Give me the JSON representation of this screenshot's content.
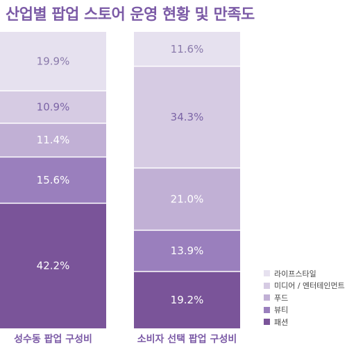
{
  "title": "산업별 팝업 스토어 운영 현황 및 만족도",
  "chart_data": {
    "type": "bar",
    "stacked": true,
    "categories": [
      "성수동 팝업 구성비",
      "소비자 선택 팝업 구성비"
    ],
    "series": [
      {
        "name": "라이프스타일",
        "color": "#e6e1ef",
        "text_color": "#8a7aab",
        "values": [
          19.9,
          11.6
        ]
      },
      {
        "name": "미디어 / 엔터테인먼트",
        "color": "#d6cbe3",
        "text_color": "#7b64a6",
        "values": [
          10.9,
          34.3
        ]
      },
      {
        "name": "푸드",
        "color": "#c1b0d5",
        "text_color": "#ffffff",
        "values": [
          11.4,
          21.0
        ]
      },
      {
        "name": "뷰티",
        "color": "#9a7fbd",
        "text_color": "#ffffff",
        "values": [
          15.6,
          13.9
        ]
      },
      {
        "name": "패션",
        "color": "#7a5499",
        "text_color": "#ffffff",
        "values": [
          42.2,
          19.2
        ]
      }
    ],
    "value_suffix": "%",
    "legend_position": "bottom-right"
  }
}
